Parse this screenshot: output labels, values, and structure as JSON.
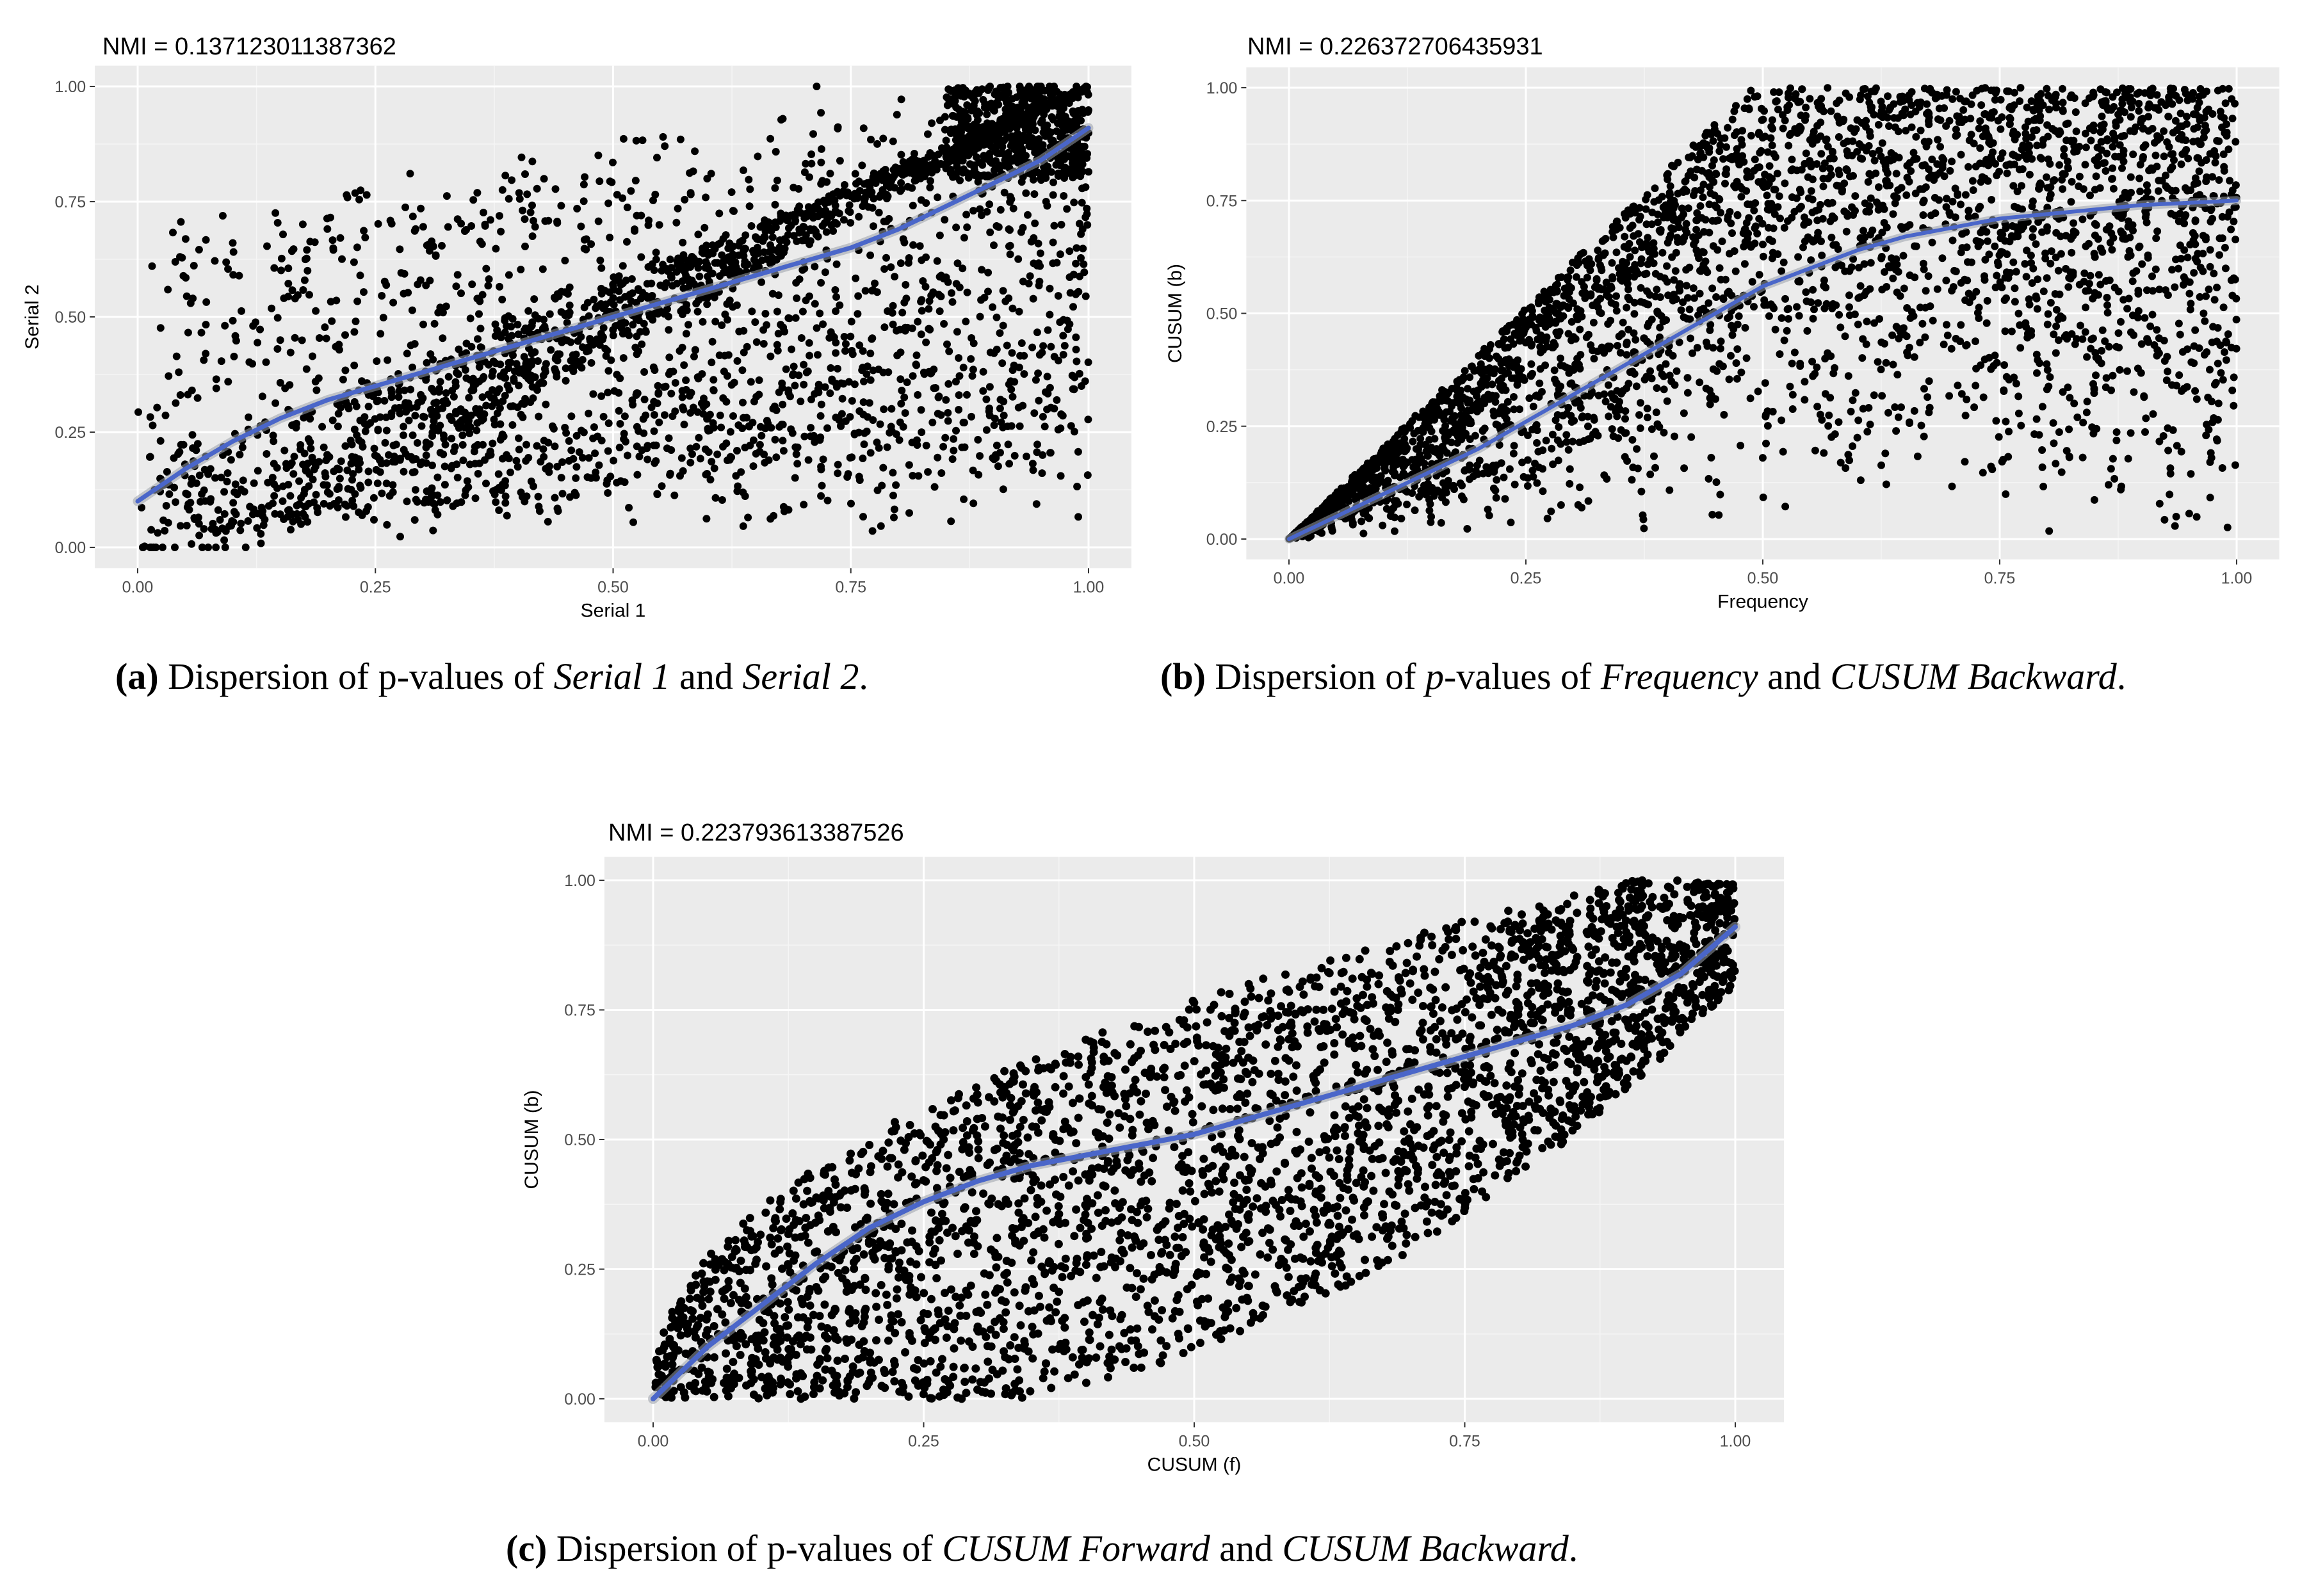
{
  "chart_data": [
    {
      "type": "scatter",
      "title": "NMI =  0.137123011387362",
      "xlabel": "Serial 1",
      "ylabel": "Serial 2",
      "xlim": [
        0,
        1
      ],
      "ylim": [
        0,
        1
      ],
      "xticks": [
        "0.00",
        "0.25",
        "0.50",
        "0.75",
        "1.00"
      ],
      "yticks": [
        "0.00",
        "0.25",
        "0.50",
        "0.75",
        "1.00"
      ],
      "grid": true,
      "point_color": "#000000",
      "smooth_color": "#4a66c9",
      "background": "#ebebeb",
      "smooth": {
        "x": [
          0,
          0.05,
          0.1,
          0.15,
          0.2,
          0.25,
          0.3,
          0.35,
          0.4,
          0.45,
          0.5,
          0.55,
          0.6,
          0.65,
          0.7,
          0.75,
          0.8,
          0.85,
          0.9,
          0.95,
          1.0
        ],
        "y": [
          0.1,
          0.17,
          0.23,
          0.28,
          0.32,
          0.35,
          0.38,
          0.41,
          0.44,
          0.47,
          0.5,
          0.53,
          0.56,
          0.59,
          0.62,
          0.65,
          0.69,
          0.74,
          0.79,
          0.84,
          0.91
        ]
      }
    },
    {
      "type": "scatter",
      "title": "NMI =  0.226372706435931",
      "xlabel": "Frequency",
      "ylabel": "CUSUM (b)",
      "xlim": [
        0,
        1
      ],
      "ylim": [
        0,
        1
      ],
      "xticks": [
        "0.00",
        "0.25",
        "0.50",
        "0.75",
        "1.00"
      ],
      "yticks": [
        "0.00",
        "0.25",
        "0.50",
        "0.75",
        "1.00"
      ],
      "grid": true,
      "point_color": "#000000",
      "smooth_color": "#4a66c9",
      "background": "#ebebeb",
      "smooth": {
        "x": [
          0,
          0.05,
          0.1,
          0.15,
          0.2,
          0.25,
          0.3,
          0.35,
          0.4,
          0.45,
          0.5,
          0.55,
          0.6,
          0.65,
          0.7,
          0.75,
          0.8,
          0.85,
          0.9,
          0.95,
          1.0
        ],
        "y": [
          0.0,
          0.05,
          0.1,
          0.15,
          0.2,
          0.26,
          0.32,
          0.38,
          0.44,
          0.5,
          0.56,
          0.6,
          0.64,
          0.67,
          0.69,
          0.71,
          0.72,
          0.73,
          0.74,
          0.745,
          0.75
        ]
      }
    },
    {
      "type": "scatter",
      "title": "NMI =  0.223793613387526",
      "xlabel": "CUSUM (f)",
      "ylabel": "CUSUM (b)",
      "xlim": [
        0,
        1
      ],
      "ylim": [
        0,
        1
      ],
      "xticks": [
        "0.00",
        "0.25",
        "0.50",
        "0.75",
        "1.00"
      ],
      "yticks": [
        "0.00",
        "0.25",
        "0.50",
        "0.75",
        "1.00"
      ],
      "grid": true,
      "point_color": "#000000",
      "smooth_color": "#4a66c9",
      "background": "#ebebeb",
      "smooth": {
        "x": [
          0,
          0.05,
          0.1,
          0.15,
          0.2,
          0.25,
          0.3,
          0.35,
          0.4,
          0.45,
          0.5,
          0.55,
          0.6,
          0.65,
          0.7,
          0.75,
          0.8,
          0.85,
          0.9,
          0.95,
          1.0
        ],
        "y": [
          0.0,
          0.1,
          0.18,
          0.26,
          0.33,
          0.38,
          0.42,
          0.45,
          0.47,
          0.49,
          0.51,
          0.54,
          0.57,
          0.6,
          0.63,
          0.66,
          0.69,
          0.72,
          0.76,
          0.82,
          0.91
        ]
      }
    }
  ],
  "captions": {
    "a": {
      "label": "(a)",
      "pre": " Dispersion of p-values of ",
      "it1": "Serial 1",
      "mid": " and ",
      "it2": "Serial 2",
      "post": "."
    },
    "b": {
      "label": "(b)",
      "pre": " Dispersion of ",
      "pit": "p",
      "pre2": "-values of ",
      "it1": "Frequency",
      "mid": " and ",
      "it2": "CUSUM Backward",
      "post": "."
    },
    "c": {
      "label": "(c)",
      "pre": " Dispersion of p-values of ",
      "it1": "CUSUM Forward",
      "mid": " and ",
      "it2": "CUSUM Backward",
      "post": "."
    }
  }
}
